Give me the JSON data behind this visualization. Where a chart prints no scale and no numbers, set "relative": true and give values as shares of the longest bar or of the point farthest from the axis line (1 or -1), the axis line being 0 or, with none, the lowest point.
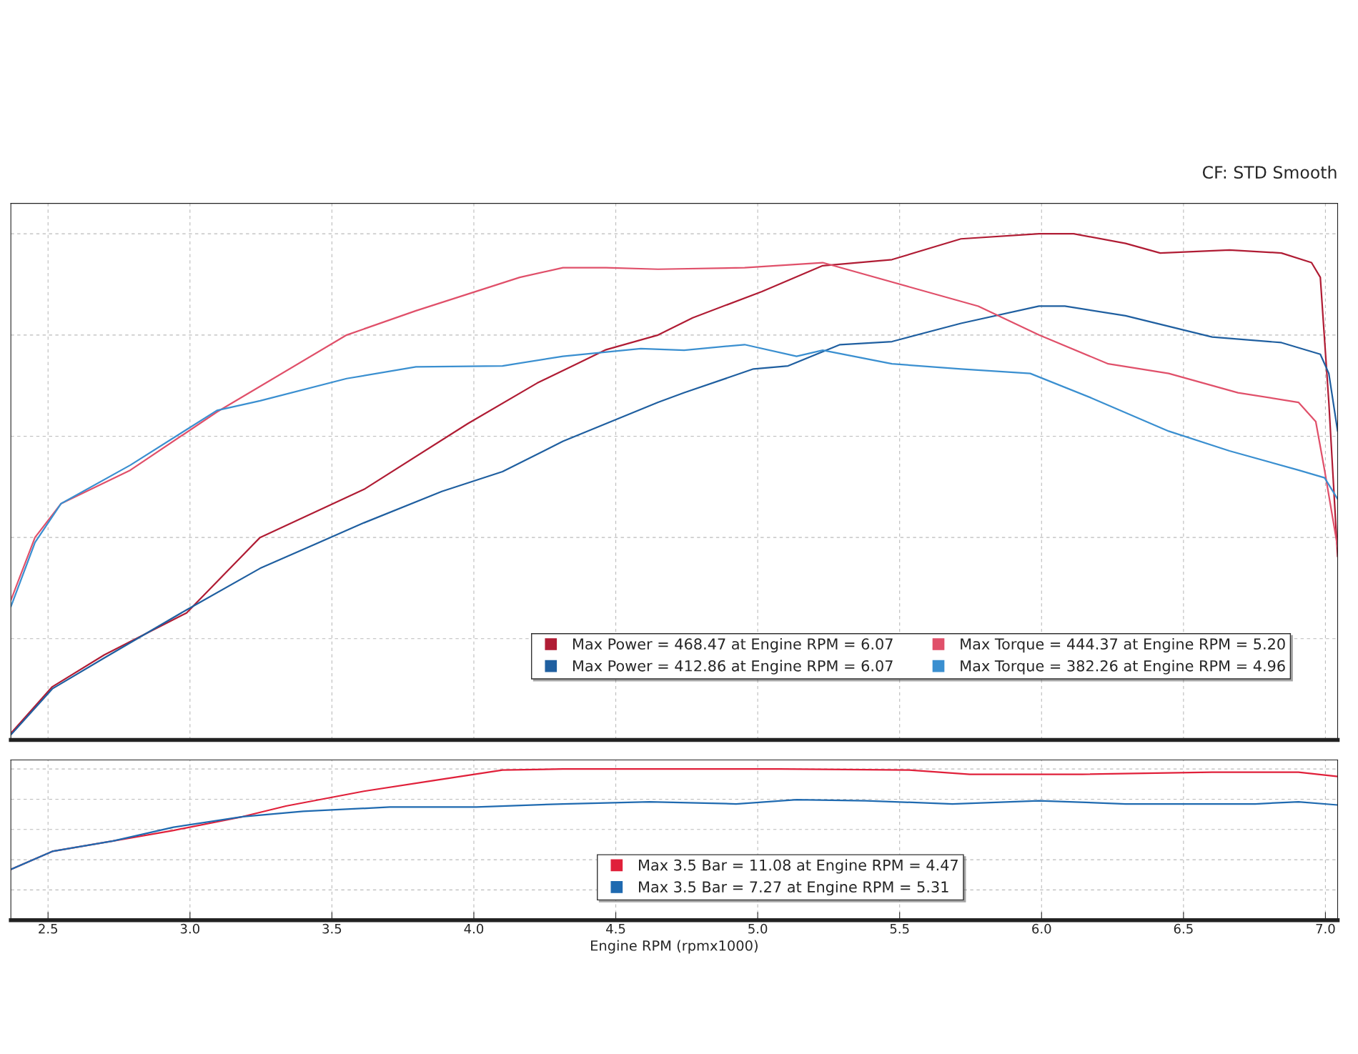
{
  "chart_data": [
    {
      "type": "line",
      "relative": true,
      "tick_labels": false,
      "grid": true,
      "legend": "bottom right",
      "line_style": "solid",
      "xlim": [
        2.369,
        7.043
      ],
      "xticks": [
        {
          "value": 2.5,
          "label": null
        },
        {
          "value": 3,
          "label": null
        },
        {
          "value": 3.5,
          "label": null
        },
        {
          "value": 4,
          "label": null
        },
        {
          "value": 4.5,
          "label": null
        },
        {
          "value": 5,
          "label": null
        },
        {
          "value": 5.5,
          "label": null
        },
        {
          "value": 6,
          "label": null
        },
        {
          "value": 6.5,
          "label": null
        },
        {
          "value": 7,
          "label": null
        }
      ],
      "annotations": [
        "CF: STD Smooth"
      ],
      "series": [
        {
          "name": "Max Power = 468.47 at Engine RPM = 6.07",
          "color": "#b01c34",
          "x": [
            2.369,
            2.515,
            2.698,
            2.988,
            3.247,
            3.613,
            3.979,
            4.223,
            4.466,
            4.649,
            4.771,
            5.015,
            5.229,
            5.473,
            5.716,
            5.991,
            6.113,
            6.296,
            6.418,
            6.662,
            6.845,
            6.951,
            6.982,
            7.012,
            7.043
          ],
          "values": [
            0.013,
            0.105,
            0.168,
            0.251,
            0.4,
            0.495,
            0.625,
            0.705,
            0.771,
            0.8,
            0.834,
            0.886,
            0.937,
            0.949,
            0.99,
            1.0,
            1.0,
            0.981,
            0.962,
            0.968,
            0.962,
            0.943,
            0.914,
            0.667,
            0.362
          ]
        },
        {
          "name": "Max Power = 412.86 at Engine RPM = 6.07",
          "color": "#1f5fa0",
          "x": [
            2.369,
            2.515,
            2.698,
            2.988,
            3.247,
            3.613,
            3.887,
            4.101,
            4.314,
            4.649,
            4.741,
            4.985,
            5.107,
            5.29,
            5.473,
            5.716,
            5.991,
            6.082,
            6.296,
            6.601,
            6.845,
            6.982,
            7.012,
            7.043
          ],
          "values": [
            0.01,
            0.101,
            0.162,
            0.257,
            0.339,
            0.429,
            0.491,
            0.53,
            0.59,
            0.667,
            0.686,
            0.733,
            0.739,
            0.781,
            0.787,
            0.823,
            0.857,
            0.857,
            0.838,
            0.796,
            0.785,
            0.762,
            0.724,
            0.61
          ]
        },
        {
          "name": "Max Torque = 444.37 at Engine RPM = 5.20",
          "color": "#e0506a",
          "x": [
            2.369,
            2.454,
            2.546,
            2.79,
            3.095,
            3.552,
            3.796,
            4.162,
            4.314,
            4.466,
            4.649,
            4.954,
            5.229,
            5.534,
            5.777,
            5.991,
            6.235,
            6.448,
            6.692,
            6.905,
            6.966,
            6.997,
            7.043
          ],
          "values": [
            0.276,
            0.4,
            0.467,
            0.533,
            0.648,
            0.8,
            0.848,
            0.914,
            0.933,
            0.933,
            0.93,
            0.933,
            0.943,
            0.895,
            0.857,
            0.8,
            0.743,
            0.724,
            0.686,
            0.667,
            0.629,
            0.533,
            0.381
          ]
        },
        {
          "name": "Max Torque = 382.26 at Engine RPM = 4.96",
          "color": "#3a8fd0",
          "x": [
            2.369,
            2.454,
            2.546,
            2.79,
            3.095,
            3.247,
            3.552,
            3.796,
            4.101,
            4.314,
            4.588,
            4.741,
            4.954,
            5.137,
            5.229,
            5.473,
            5.716,
            5.96,
            6.174,
            6.448,
            6.662,
            6.905,
            6.997,
            7.043
          ],
          "values": [
            0.263,
            0.39,
            0.467,
            0.543,
            0.651,
            0.67,
            0.714,
            0.737,
            0.739,
            0.758,
            0.773,
            0.77,
            0.781,
            0.758,
            0.77,
            0.743,
            0.733,
            0.724,
            0.676,
            0.61,
            0.571,
            0.533,
            0.518,
            0.476
          ]
        }
      ]
    },
    {
      "type": "line",
      "relative": true,
      "tick_labels": "x",
      "grid": true,
      "legend": "bottom",
      "line_style": "solid",
      "xlim": [
        2.369,
        7.043
      ],
      "xticks": [
        2.5,
        {
          "value": 3,
          "label": "3.0"
        },
        3.5,
        {
          "value": 4,
          "label": "4.0"
        },
        4.5,
        {
          "value": 5,
          "label": "5.0"
        },
        5.5,
        {
          "value": 6,
          "label": "6.0"
        },
        6.5,
        {
          "value": 7,
          "label": "7.0"
        }
      ],
      "xlabel": "Engine RPM (rpmx1000)",
      "series": [
        {
          "name": "Max 3.5 Bar = 11.08 at Engine RPM = 4.47",
          "color": "#e0203a",
          "x": [
            2.369,
            2.515,
            2.729,
            2.942,
            3.186,
            3.338,
            3.613,
            3.857,
            4.101,
            4.314,
            5.076,
            5.534,
            5.747,
            6.143,
            6.601,
            6.905,
            7.043
          ],
          "values": [
            0.336,
            0.455,
            0.524,
            0.594,
            0.685,
            0.755,
            0.853,
            0.923,
            0.993,
            1.0,
            1.0,
            0.993,
            0.965,
            0.965,
            0.979,
            0.979,
            0.951
          ]
        },
        {
          "name": "Max 3.5 Bar = 7.27 at Engine RPM = 5.31",
          "color": "#1f6ab0",
          "x": [
            2.369,
            2.515,
            2.729,
            2.942,
            3.186,
            3.399,
            3.704,
            4.009,
            4.314,
            4.619,
            4.924,
            5.137,
            5.381,
            5.686,
            5.991,
            6.296,
            6.753,
            6.905,
            7.043
          ],
          "values": [
            0.336,
            0.455,
            0.524,
            0.615,
            0.685,
            0.72,
            0.748,
            0.748,
            0.769,
            0.783,
            0.769,
            0.797,
            0.79,
            0.769,
            0.79,
            0.769,
            0.769,
            0.783,
            0.762
          ]
        }
      ]
    }
  ]
}
